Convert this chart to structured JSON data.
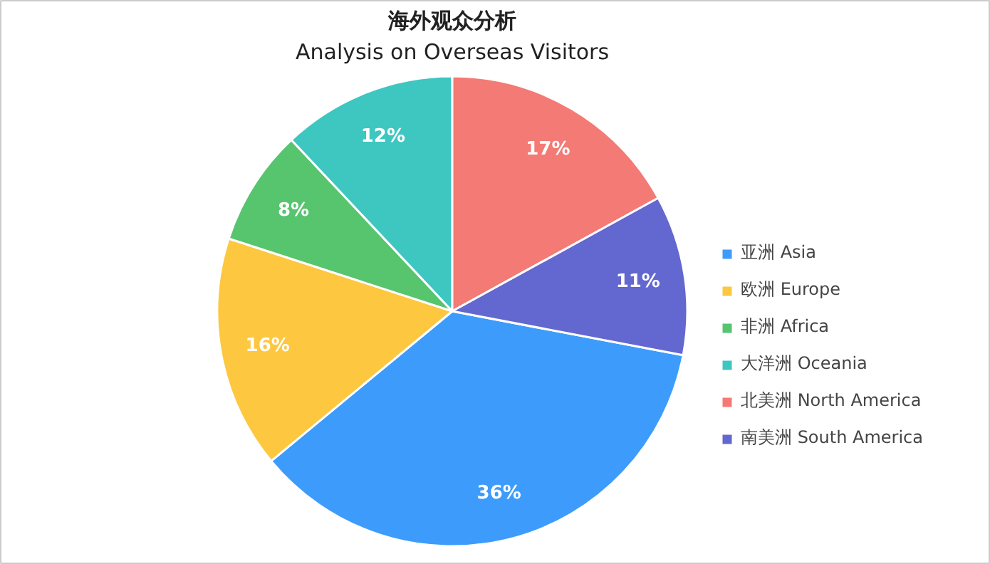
{
  "chart_data": {
    "type": "pie",
    "title": "海外观众分析",
    "subtitle": "Analysis on Overseas Visitors",
    "categories": [
      "亚洲 Asia",
      "欧洲 Europe",
      "非洲 Africa",
      "大洋洲 Oceania",
      "北美洲 North America",
      "南美洲 South America"
    ],
    "values": [
      36,
      16,
      8,
      12,
      17,
      11
    ],
    "colors": [
      "#3d9cfb",
      "#fdc73f",
      "#57c46e",
      "#3ec6c1",
      "#f47a75",
      "#6367d0"
    ],
    "value_labels": [
      "36%",
      "16%",
      "8%",
      "12%",
      "17%",
      "11%"
    ],
    "legend": "right"
  }
}
